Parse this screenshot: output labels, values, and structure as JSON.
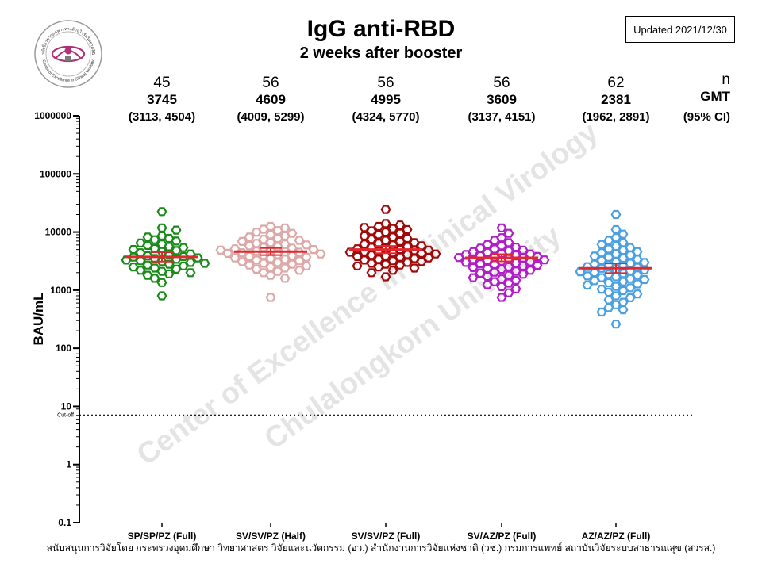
{
  "header": {
    "title": "IgG anti-RBD",
    "subtitle": "2 weeks after booster",
    "updated": "Updated 2021/12/30"
  },
  "logo": {
    "text_top": "ศูนย์เชี่ยวชาญเฉพาะทางด้านไวรัสวิทยาคลินิก",
    "text_bottom": "Center of Excellence in Clinical Virology"
  },
  "watermark": {
    "line1": "Center of Excellence in Clinical Virology",
    "line2": "Chulalongkorn University"
  },
  "footer": "สนับสนุนการวิจัยโดย กระทรวงอุดมศึกษา วิทยาศาสตร วิจัยและนวัตกรรม (อว.) สำนักงานการวิจัยแห่งชาติ (วช.) กรมการแพทย์ สถาบันวิจัยระบบสาธารณสุข (สวรส.)",
  "colors": {
    "mean_line": "#e0282e",
    "cutoff_line": "#000000",
    "watermark": "#e4e4e4"
  },
  "chart_data": {
    "type": "scatter",
    "title": "IgG anti-RBD",
    "subtitle": "2 weeks after booster",
    "xlabel": "",
    "ylabel": "BAU/mL",
    "yscale": "log",
    "ylim": [
      0.1,
      1000000
    ],
    "yticks": [
      1000000,
      100000,
      10000,
      1000,
      100,
      10,
      1,
      0.1
    ],
    "ytick_labels": [
      "1000000",
      "100000",
      "10000",
      "1000",
      "100",
      "10",
      "1",
      "0.1"
    ],
    "cutoff": {
      "label": "Cut-off",
      "value": 7.1
    },
    "stat_labels": {
      "n": "n",
      "gmt": "GMT",
      "ci": "(95% CI)"
    },
    "groups": [
      {
        "name": "SP/SP/PZ (Full)",
        "color": "#1a8a1a",
        "n": "45",
        "gmt": "3745",
        "ci": "(3113, 4504)",
        "gmt_value": 3745,
        "ci_low": 3113,
        "ci_high": 4504,
        "values": [
          22500,
          11800,
          10800,
          8600,
          8200,
          7800,
          7400,
          7000,
          6500,
          6200,
          5900,
          5600,
          5400,
          5200,
          5000,
          4800,
          4600,
          4400,
          4200,
          4050,
          3900,
          3800,
          3700,
          3600,
          3500,
          3400,
          3300,
          3200,
          3100,
          3000,
          2900,
          2800,
          2700,
          2600,
          2500,
          2400,
          2300,
          2200,
          2100,
          2000,
          1900,
          1800,
          1600,
          1350,
          800
        ]
      },
      {
        "name": "SV/SV/PZ (Half)",
        "color": "#dca8a8",
        "n": "56",
        "gmt": "4609",
        "ci": "(4009, 5299)",
        "gmt_value": 4609,
        "ci_low": 4009,
        "ci_high": 5299,
        "values": [
          12500,
          11800,
          11200,
          10600,
          10000,
          9500,
          9000,
          8600,
          8200,
          7800,
          7500,
          7200,
          6900,
          6600,
          6400,
          6200,
          6000,
          5800,
          5600,
          5450,
          5300,
          5150,
          5000,
          4900,
          4800,
          4700,
          4600,
          4500,
          4400,
          4300,
          4200,
          4100,
          4000,
          3900,
          3800,
          3700,
          3600,
          3500,
          3400,
          3300,
          3200,
          3100,
          3000,
          2900,
          2800,
          2700,
          2600,
          2500,
          2400,
          2300,
          2200,
          2100,
          2000,
          1800,
          1600,
          750
        ]
      },
      {
        "name": "SV/SV/PZ (Full)",
        "color": "#9e0a0a",
        "n": "56",
        "gmt": "4995",
        "ci": "(4324, 5770)",
        "gmt_value": 4995,
        "ci_low": 4324,
        "ci_high": 5770,
        "values": [
          24500,
          14000,
          13200,
          12500,
          12000,
          11500,
          11000,
          10500,
          10000,
          9500,
          9000,
          8600,
          8200,
          7800,
          7500,
          7200,
          6900,
          6600,
          6400,
          6200,
          6000,
          5800,
          5600,
          5450,
          5300,
          5150,
          5000,
          4900,
          4800,
          4700,
          4600,
          4500,
          4400,
          4300,
          4200,
          4100,
          4000,
          3900,
          3800,
          3700,
          3600,
          3500,
          3400,
          3300,
          3200,
          3100,
          3000,
          2900,
          2800,
          2700,
          2600,
          2500,
          2400,
          2200,
          2000,
          1700
        ]
      },
      {
        "name": "SV/AZ/PZ (Full)",
        "color": "#b01ec8",
        "n": "56",
        "gmt": "3609",
        "ci": "(3137, 4151)",
        "gmt_value": 3609,
        "ci_low": 3137,
        "ci_high": 4151,
        "values": [
          11800,
          9500,
          8000,
          7200,
          6600,
          6100,
          5800,
          5500,
          5300,
          5100,
          4900,
          4750,
          4600,
          4450,
          4300,
          4200,
          4100,
          4000,
          3900,
          3800,
          3720,
          3640,
          3560,
          3480,
          3400,
          3320,
          3240,
          3160,
          3080,
          3000,
          2920,
          2840,
          2760,
          2680,
          2600,
          2520,
          2440,
          2360,
          2280,
          2200,
          2120,
          2040,
          1960,
          1880,
          1800,
          1720,
          1640,
          1560,
          1480,
          1400,
          1320,
          1240,
          1150,
          1050,
          900,
          750
        ]
      },
      {
        "name": "AZ/AZ/PZ (Full)",
        "color": "#4aa0e0",
        "n": "62",
        "gmt": "2381",
        "ci": "(1962, 2891)",
        "gmt_value": 2381,
        "ci_low": 1962,
        "ci_high": 2891,
        "values": [
          20000,
          11000,
          9200,
          8000,
          7200,
          6600,
          6100,
          5700,
          5400,
          5100,
          4850,
          4600,
          4400,
          4200,
          4000,
          3850,
          3700,
          3550,
          3400,
          3250,
          3100,
          3000,
          2900,
          2800,
          2700,
          2620,
          2540,
          2460,
          2380,
          2300,
          2220,
          2150,
          2080,
          2010,
          1940,
          1880,
          1820,
          1760,
          1700,
          1640,
          1580,
          1520,
          1460,
          1400,
          1340,
          1280,
          1220,
          1160,
          1100,
          1040,
          980,
          920,
          860,
          800,
          740,
          680,
          620,
          560,
          500,
          460,
          420,
          260
        ]
      }
    ]
  }
}
